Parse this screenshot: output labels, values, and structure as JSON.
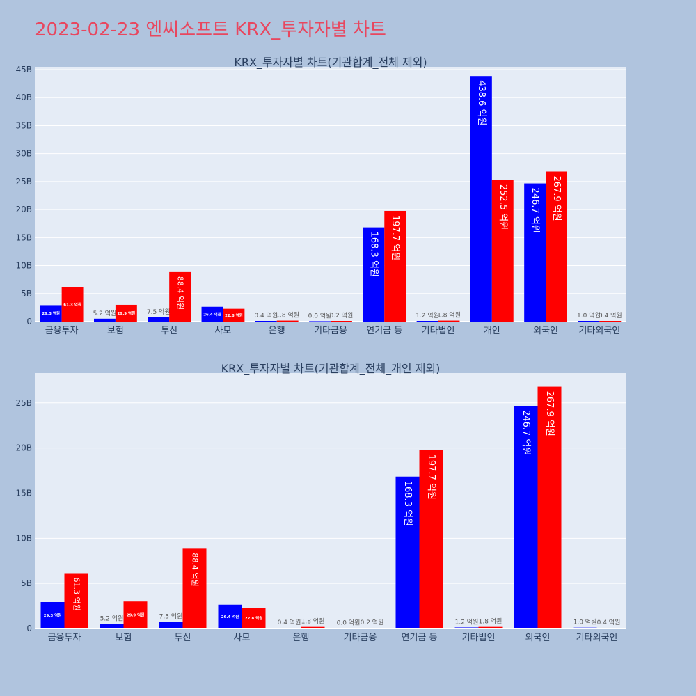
{
  "page": {
    "title": "2023-02-23 엔씨소프트 KRX_투자자별 차트"
  },
  "colors": {
    "buy": "#0000ff",
    "sell": "#ff0000",
    "plot_bg": "#e5ecf6",
    "page_bg": "#b0c4de",
    "title": "#e8475f"
  },
  "chart_data": [
    {
      "type": "bar",
      "title": "KRX_투자자별 차트(기관합계_전체 제외)",
      "categories": [
        "금융투자",
        "보험",
        "투신",
        "사모",
        "은행",
        "기타금융",
        "연기금 등",
        "기타법인",
        "개인",
        "외국인",
        "기타외국인"
      ],
      "series": [
        {
          "values": [
            2.93,
            0.52,
            0.75,
            2.64,
            0.04,
            0.0,
            16.83,
            0.12,
            43.86,
            24.67,
            0.1
          ],
          "labels": [
            "29.3 억원",
            "5.2 억원",
            "7.5 억원",
            "26.4 억원",
            "0.4 억원",
            "0.0 억원",
            "168.3 억원",
            "1.2 억원",
            "438.6 억원",
            "246.7 억원",
            "1.0 억원"
          ]
        },
        {
          "values": [
            6.13,
            2.99,
            8.84,
            2.28,
            0.18,
            0.02,
            19.77,
            0.18,
            25.25,
            26.79,
            0.04
          ],
          "labels": [
            "61.3 억원",
            "29.9 억원",
            "88.4 억원",
            "22.8 억원",
            "1.8 억원",
            "0.2 억원",
            "197.7 억원",
            "1.8 억원",
            "252.5 억원",
            "267.9 억원",
            "0.4 억원"
          ]
        }
      ],
      "ylim": [
        0,
        45.5
      ],
      "yticks": [
        0,
        5,
        10,
        15,
        20,
        25,
        30,
        35,
        40,
        45
      ],
      "ytick_labels": [
        "0",
        "5B",
        "10B",
        "15B",
        "20B",
        "25B",
        "30B",
        "35B",
        "40B",
        "45B"
      ],
      "grid": true
    },
    {
      "type": "bar",
      "title": "KRX_투자자별 차트(기관합계_전체_개인 제외)",
      "categories": [
        "금융투자",
        "보험",
        "투신",
        "사모",
        "은행",
        "기타금융",
        "연기금 등",
        "기타법인",
        "외국인",
        "기타외국인"
      ],
      "series": [
        {
          "values": [
            2.93,
            0.52,
            0.75,
            2.64,
            0.04,
            0.0,
            16.83,
            0.12,
            24.67,
            0.1
          ],
          "labels": [
            "29.3 억원",
            "5.2 억원",
            "7.5 억원",
            "26.4 억원",
            "0.4 억원",
            "0.0 억원",
            "168.3 억원",
            "1.2 억원",
            "246.7 억원",
            "1.0 억원"
          ]
        },
        {
          "values": [
            6.13,
            2.99,
            8.84,
            2.28,
            0.18,
            0.02,
            19.77,
            0.18,
            26.79,
            0.04
          ],
          "labels": [
            "61.3 억원",
            "29.9 억원",
            "88.4 억원",
            "22.8 억원",
            "1.8 억원",
            "0.2 억원",
            "197.7 억원",
            "1.8 억원",
            "267.9 억원",
            "0.4 억원"
          ]
        }
      ],
      "ylim": [
        0,
        28.3
      ],
      "yticks": [
        0,
        5,
        10,
        15,
        20,
        25
      ],
      "ytick_labels": [
        "0",
        "5B",
        "10B",
        "15B",
        "20B",
        "25B"
      ],
      "grid": true
    }
  ]
}
